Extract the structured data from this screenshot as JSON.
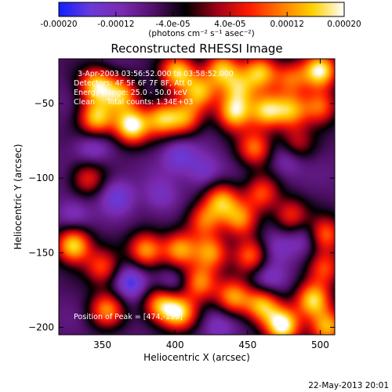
{
  "colorbar": {
    "tick_labels": [
      "-0.00020",
      "-0.00012",
      "-4.0e-05",
      "4.0e-05",
      "0.00012",
      "0.00020"
    ],
    "tick_values": [
      -0.0002,
      -0.00012,
      -4e-05,
      4e-05,
      0.00012,
      0.0002
    ],
    "range": [
      -0.0002,
      0.0002
    ],
    "unit_label": "(photons cm⁻² s⁻¹ asec⁻²)",
    "colors": [
      "#1020ff",
      "#6a3ad8",
      "#7a2ab0",
      "#501068",
      "#000000",
      "#a00018",
      "#ff1a00",
      "#ff7a00",
      "#ffd000",
      "#ffffff"
    ]
  },
  "chart_data": {
    "type": "heatmap",
    "title": "Reconstructed RHESSI Image",
    "xlabel": "Heliocentric X (arcsec)",
    "ylabel": "Heliocentric Y (arcsec)",
    "xlim": [
      320,
      510
    ],
    "ylim": [
      -205,
      -20
    ],
    "x_ticks": [
      350,
      400,
      450,
      500
    ],
    "y_ticks": [
      -50,
      -100,
      -150,
      -200
    ],
    "x_tick_labels": [
      "350",
      "400",
      "450",
      "500"
    ],
    "y_tick_labels": [
      "−50",
      "−100",
      "−150",
      "−200"
    ],
    "annotations": [
      "3-Apr-2003 03:56:52.000 to 03:58:52.000",
      "Detectors: 4F 5F 6F 7F 8F, Att 0",
      "Energy Range: 25.0 - 50.0 keV",
      "Clean     Total counts: 1.34E+03"
    ],
    "peak_label": "Position of Peak = [474,-199]",
    "peak": [
      474,
      -199
    ],
    "sources": [
      {
        "x": 346,
        "y": -38,
        "v": 0.00016
      },
      {
        "x": 363,
        "y": -44,
        "v": 0.00012
      },
      {
        "x": 402,
        "y": -29,
        "v": 0.00016
      },
      {
        "x": 417,
        "y": -42,
        "v": 0.00012
      },
      {
        "x": 432,
        "y": -27,
        "v": 0.00013
      },
      {
        "x": 444,
        "y": -40,
        "v": 0.0001
      },
      {
        "x": 459,
        "y": -29,
        "v": 0.00014
      },
      {
        "x": 480,
        "y": -33,
        "v": 8e-05
      },
      {
        "x": 500,
        "y": -28,
        "v": 0.00018
      },
      {
        "x": 346,
        "y": -60,
        "v": 0.00015
      },
      {
        "x": 370,
        "y": -65,
        "v": 0.0002
      },
      {
        "x": 391,
        "y": -60,
        "v": 0.00013
      },
      {
        "x": 407,
        "y": -60,
        "v": 0.0001
      },
      {
        "x": 441,
        "y": -56,
        "v": 0.00016
      },
      {
        "x": 463,
        "y": -55,
        "v": 0.00014
      },
      {
        "x": 480,
        "y": -55,
        "v": 0.00011
      },
      {
        "x": 500,
        "y": -52,
        "v": 0.0001
      },
      {
        "x": 455,
        "y": -80,
        "v": 0.0001
      },
      {
        "x": 483,
        "y": -78,
        "v": 6e-05
      },
      {
        "x": 340,
        "y": -100,
        "v": 6e-05
      },
      {
        "x": 432,
        "y": -115,
        "v": 0.00012
      },
      {
        "x": 420,
        "y": -128,
        "v": 9e-05
      },
      {
        "x": 445,
        "y": -128,
        "v": 0.0001
      },
      {
        "x": 460,
        "y": -110,
        "v": 8e-05
      },
      {
        "x": 480,
        "y": -125,
        "v": 7e-05
      },
      {
        "x": 330,
        "y": -145,
        "v": 0.00018
      },
      {
        "x": 350,
        "y": -160,
        "v": 8e-05
      },
      {
        "x": 380,
        "y": -148,
        "v": 0.00013
      },
      {
        "x": 403,
        "y": -148,
        "v": 0.00012
      },
      {
        "x": 425,
        "y": -150,
        "v": 0.00011
      },
      {
        "x": 452,
        "y": -152,
        "v": 0.0001
      },
      {
        "x": 503,
        "y": -138,
        "v": 0.00011
      },
      {
        "x": 503,
        "y": -160,
        "v": 7e-05
      },
      {
        "x": 353,
        "y": -188,
        "v": 0.00011
      },
      {
        "x": 390,
        "y": -185,
        "v": 0.00013
      },
      {
        "x": 403,
        "y": -190,
        "v": 0.00015
      },
      {
        "x": 417,
        "y": -170,
        "v": 0.00012
      },
      {
        "x": 440,
        "y": -180,
        "v": 0.00012
      },
      {
        "x": 460,
        "y": -185,
        "v": 0.00014
      },
      {
        "x": 474,
        "y": -199,
        "v": 0.0002
      },
      {
        "x": 495,
        "y": -182,
        "v": 0.00016
      },
      {
        "x": 505,
        "y": -200,
        "v": 0.00014
      },
      {
        "x": 370,
        "y": -170,
        "v": -0.00014
      },
      {
        "x": 478,
        "y": -86,
        "v": -0.00012
      },
      {
        "x": 403,
        "y": -85,
        "v": -0.00011
      },
      {
        "x": 397,
        "y": -172,
        "v": -0.0001
      },
      {
        "x": 463,
        "y": -168,
        "v": -0.0001
      },
      {
        "x": 490,
        "y": -140,
        "v": -0.0001
      },
      {
        "x": 360,
        "y": -112,
        "v": -0.00011
      },
      {
        "x": 343,
        "y": -80,
        "v": -0.0001
      },
      {
        "x": 330,
        "y": -125,
        "v": -0.0001
      },
      {
        "x": 420,
        "y": -95,
        "v": -0.0001
      },
      {
        "x": 470,
        "y": -146,
        "v": -0.0001
      },
      {
        "x": 430,
        "y": -198,
        "v": -9e-05
      },
      {
        "x": 390,
        "y": -112,
        "v": -9e-05
      }
    ]
  },
  "footer": {
    "timestamp": "22-May-2013 20:01"
  }
}
